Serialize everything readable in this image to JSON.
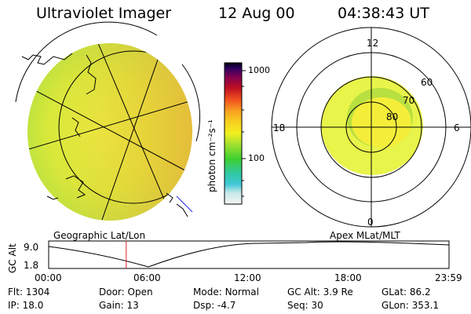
{
  "header": {
    "instrument": "Ultraviolet Imager",
    "date": "12 Aug 00",
    "time": "04:38:43 UT"
  },
  "colorbar": {
    "unit_label": "photon cm⁻²s⁻¹",
    "ticks": [
      "1000",
      "100"
    ]
  },
  "polar_plot": {
    "mlt_labels": {
      "top": "12",
      "left": "18",
      "right": "6",
      "bottom": "0"
    },
    "lat_labels": [
      "60",
      "70",
      "80"
    ]
  },
  "panel_labels": {
    "left": "Geographic Lat/Lon",
    "right": "Apex MLat/MLT"
  },
  "orbit": {
    "ylabel": "GC Alt",
    "ytick_top": "9.0",
    "ytick_bottom": "1.8",
    "xticks": [
      "00:00",
      "06:00",
      "12:00",
      "18:00",
      "23:59"
    ],
    "current_time_hours": 4.65
  },
  "info": {
    "flt_label": "Flt:",
    "flt_value": "1304",
    "door_label": "Door:",
    "door_value": "Open",
    "mode_label": "Mode:",
    "mode_value": "Normal",
    "gcalt_label": "GC Alt:",
    "gcalt_value": "3.9 Re",
    "glat_label": "GLat:",
    "glat_value": "86.2",
    "ip_label": "IP:",
    "ip_value": "18.0",
    "gain_label": "Gain:",
    "gain_value": "13",
    "dsp_label": "Dsp:",
    "dsp_value": "-4.7",
    "seq_label": "Seq:",
    "seq_value": "30",
    "glon_label": "GLon:",
    "glon_value": "353.1"
  },
  "colors": {
    "image_fill": "#c8e63c",
    "oval_fill": "#f4ee3a",
    "marker_red": "#e02020",
    "coast_blue": "#3a3ae0"
  }
}
